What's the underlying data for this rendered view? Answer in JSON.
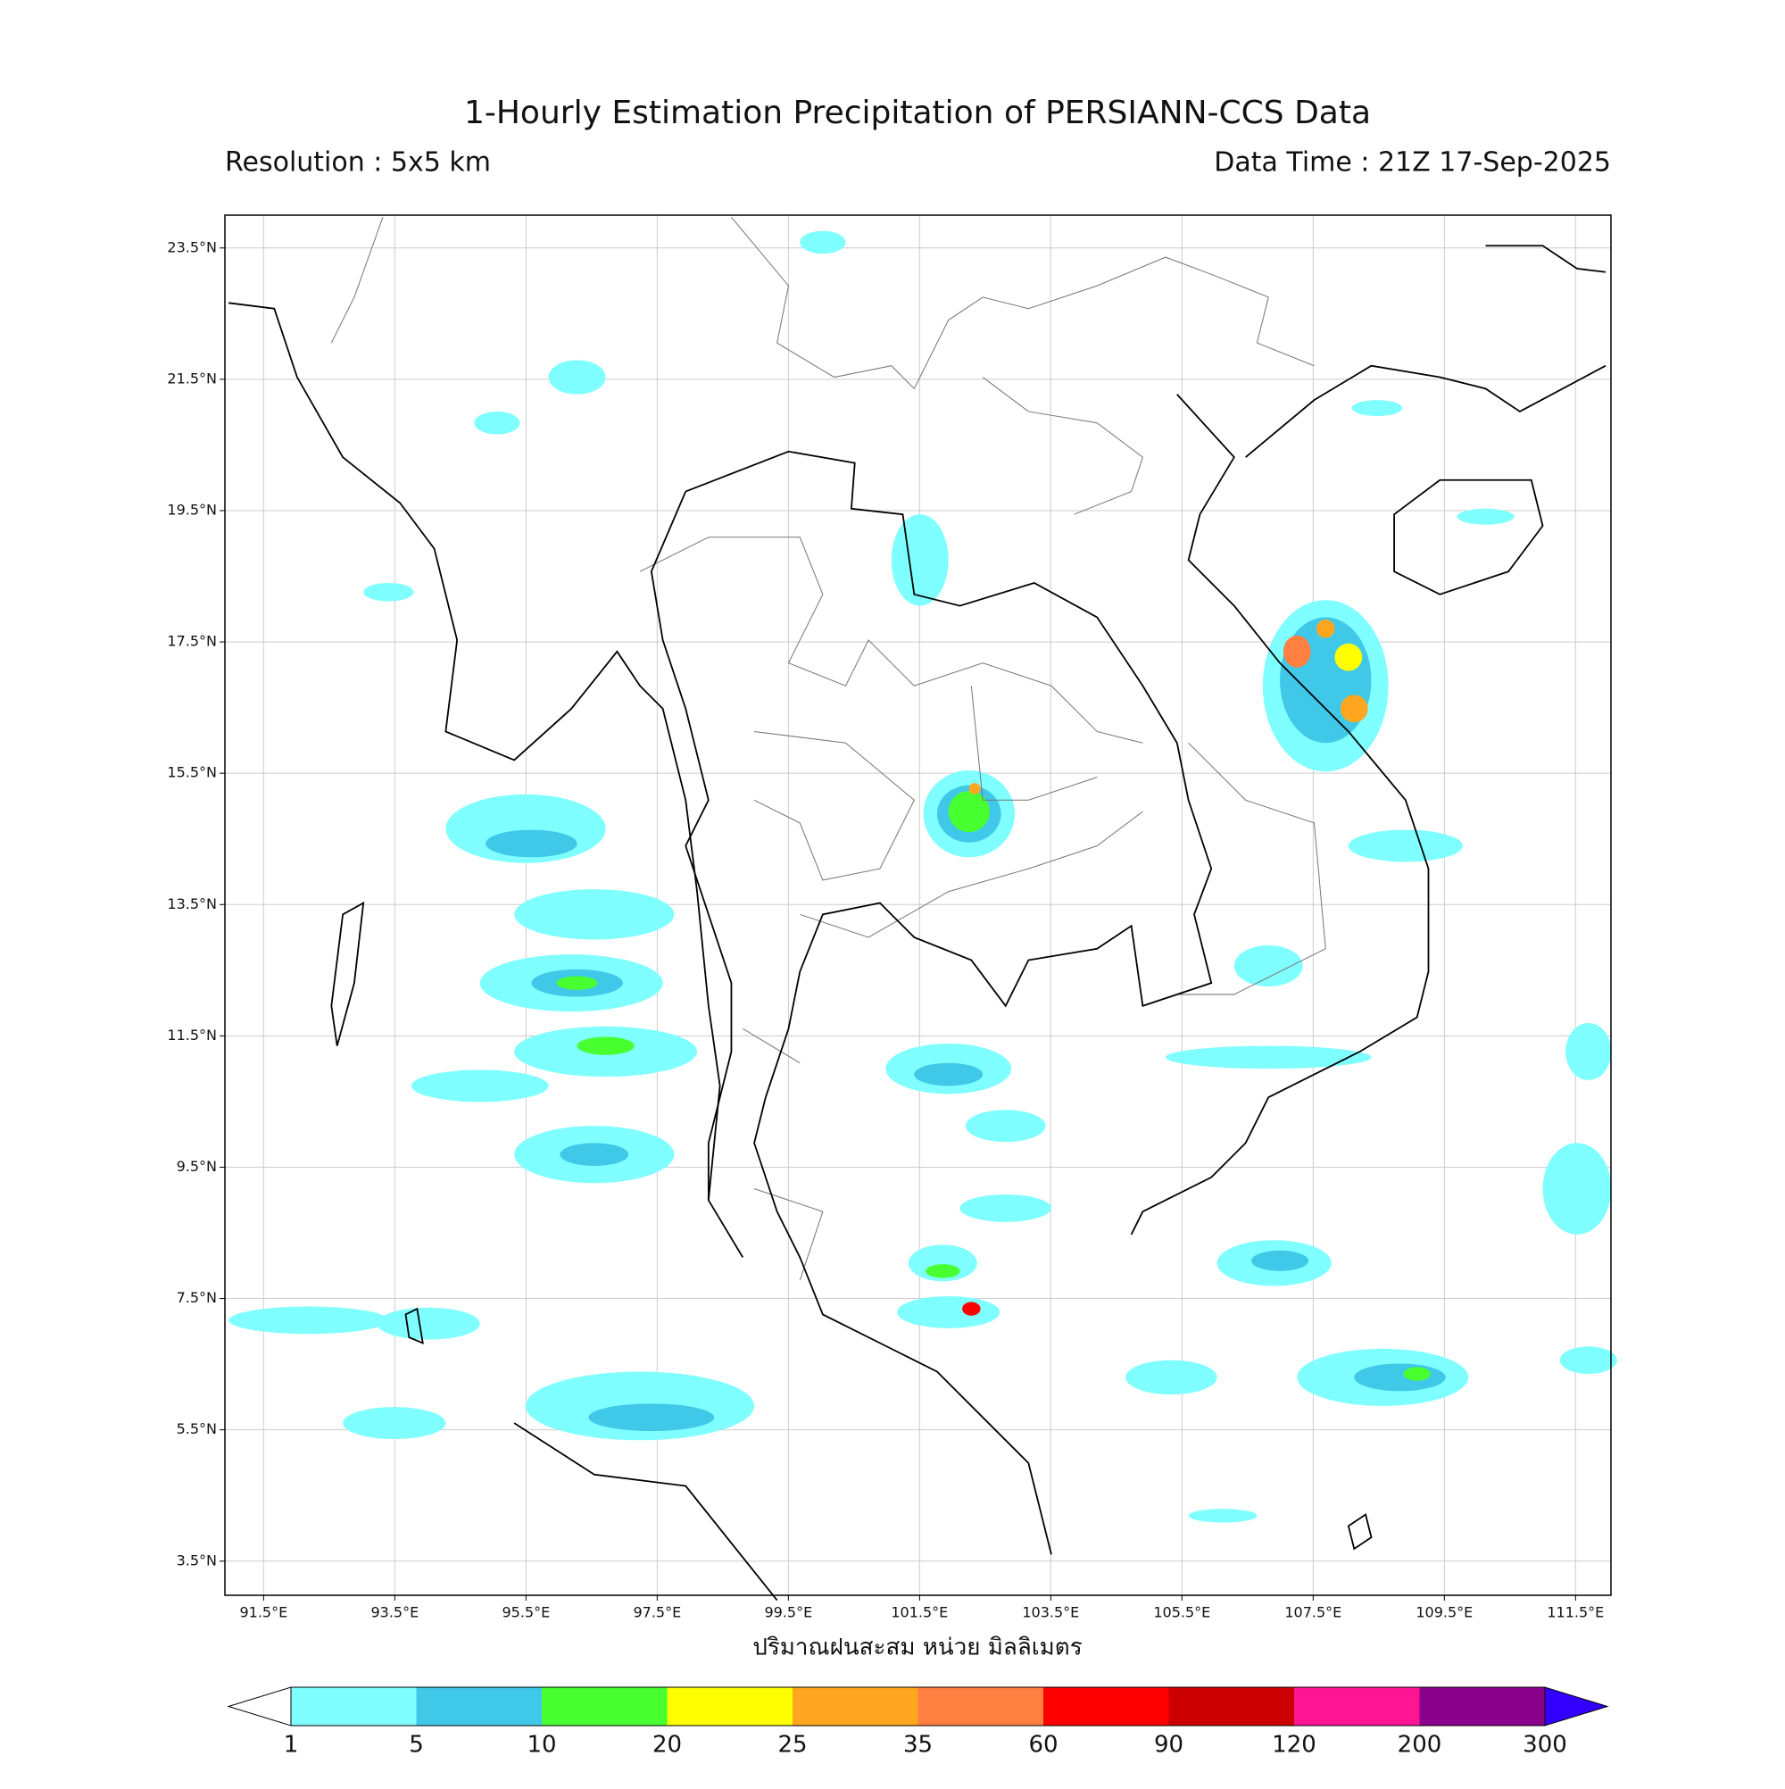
{
  "title": "1-Hourly Estimation Precipitation of PERSIANN-CCS Data",
  "resolution": "Resolution : 5x5 km",
  "data_time": "Data Time : 21Z 17-Sep-2025",
  "map": {
    "xlim": [
      90.91,
      112.04
    ],
    "ylim": [
      2.98,
      24.0
    ],
    "grid": true,
    "xticks": [
      {
        "value": 91.5,
        "label": "91.5°E"
      },
      {
        "value": 93.5,
        "label": "93.5°E"
      },
      {
        "value": 95.5,
        "label": "95.5°E"
      },
      {
        "value": 97.5,
        "label": "97.5°E"
      },
      {
        "value": 99.5,
        "label": "99.5°E"
      },
      {
        "value": 101.5,
        "label": "101.5°E"
      },
      {
        "value": 103.5,
        "label": "103.5°E"
      },
      {
        "value": 105.5,
        "label": "105.5°E"
      },
      {
        "value": 107.5,
        "label": "107.5°E"
      },
      {
        "value": 109.5,
        "label": "109.5°E"
      },
      {
        "value": 111.5,
        "label": "111.5°E"
      }
    ],
    "yticks": [
      {
        "value": 3.5,
        "label": "3.5°N"
      },
      {
        "value": 5.5,
        "label": "5.5°N"
      },
      {
        "value": 7.5,
        "label": "7.5°N"
      },
      {
        "value": 9.5,
        "label": "9.5°N"
      },
      {
        "value": 11.5,
        "label": "11.5°N"
      },
      {
        "value": 13.5,
        "label": "13.5°N"
      },
      {
        "value": 15.5,
        "label": "15.5°N"
      },
      {
        "value": 17.5,
        "label": "17.5°N"
      },
      {
        "value": 19.5,
        "label": "19.5°N"
      },
      {
        "value": 21.5,
        "label": "21.5°N"
      },
      {
        "value": 23.5,
        "label": "23.5°N"
      }
    ],
    "xlabel": "ปริมาณฝนสะสม หน่วย มิลลิเมตร"
  },
  "colorbar": {
    "levels": [
      1,
      5,
      10,
      20,
      25,
      35,
      60,
      90,
      120,
      200,
      300
    ],
    "colors": [
      "#7fffff",
      "#40c8e8",
      "#48ff30",
      "#ffff00",
      "#ffa620",
      "#ff8040",
      "#ff0000",
      "#cc0000",
      "#ff1493",
      "#8b008b"
    ],
    "under_color": "#ffffff",
    "over_color": "#3300ff"
  }
}
